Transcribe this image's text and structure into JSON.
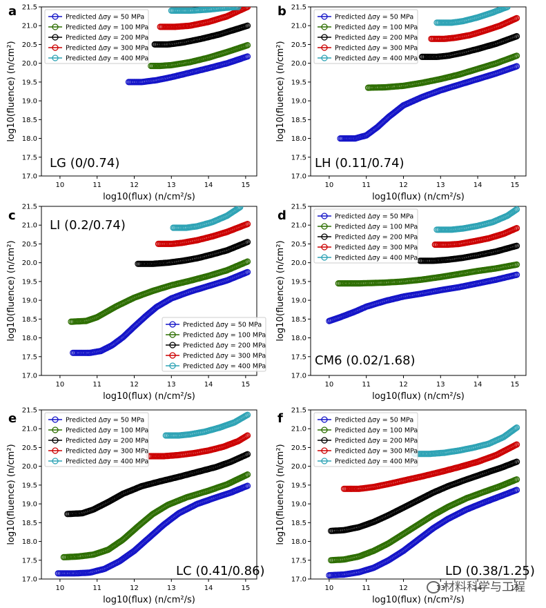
{
  "figure": {
    "x_tick_labels": [
      "10",
      "11",
      "12",
      "13",
      "14",
      "15"
    ],
    "y_tick_labels": [
      "17.0",
      "17.5",
      "18.0",
      "18.5",
      "19.0",
      "19.5",
      "20.0",
      "20.5",
      "21.0",
      "21.5"
    ],
    "xlabel": "log10(flux) (n/cm²/s)",
    "ylabel": "log10(fluence) (n/cm²)",
    "legend_labels": [
      "Predicted Δσy = 50 MPa",
      "Predicted Δσy = 100 MPa",
      "Predicted Δσy = 200 MPa",
      "Predicted Δσy = 300 MPa",
      "Predicted Δσy = 400 MPa"
    ],
    "series_colors": [
      "#1414c8",
      "#2d6e00",
      "#000000",
      "#cc0000",
      "#2ea3b5"
    ]
  },
  "watermark": "材料科学与工程",
  "chart_data": [
    {
      "type": "scatter",
      "panel_letter": "a",
      "annotation": "LG (0/0.74)",
      "xlim": [
        9.5,
        15.3
      ],
      "ylim": [
        17.0,
        21.5
      ],
      "legend_position": "upper-left",
      "series": [
        {
          "name": "Predicted Δσy = 50 MPa",
          "color": "#1414c8",
          "x": [
            11.85,
            12.2,
            12.6,
            13.0,
            13.5,
            14.0,
            14.5,
            15.05
          ],
          "y": [
            19.5,
            19.5,
            19.55,
            19.63,
            19.75,
            19.87,
            20.0,
            20.18
          ]
        },
        {
          "name": "Predicted Δσy = 100 MPa",
          "color": "#2d6e00",
          "x": [
            12.45,
            12.7,
            13.0,
            13.5,
            14.0,
            14.5,
            15.05
          ],
          "y": [
            19.93,
            19.93,
            19.95,
            20.03,
            20.15,
            20.3,
            20.48
          ]
        },
        {
          "name": "Predicted Δσy = 200 MPa",
          "color": "#000000",
          "x": [
            12.55,
            12.9,
            13.3,
            13.8,
            14.3,
            15.05
          ],
          "y": [
            20.5,
            20.5,
            20.55,
            20.65,
            20.77,
            21.0
          ]
        },
        {
          "name": "Predicted Δσy = 300 MPa",
          "color": "#cc0000",
          "x": [
            12.7,
            13.1,
            13.5,
            14.0,
            14.5,
            15.05
          ],
          "y": [
            20.97,
            20.97,
            21.0,
            21.1,
            21.25,
            21.5
          ]
        },
        {
          "name": "Predicted Δσy = 400 MPa",
          "color": "#2ea3b5",
          "x": [
            13.0,
            13.5,
            14.0,
            14.5,
            14.8
          ],
          "y": [
            21.4,
            21.4,
            21.43,
            21.48,
            21.5
          ]
        }
      ]
    },
    {
      "type": "scatter",
      "panel_letter": "b",
      "annotation": "LH (0.11/0.74)",
      "xlim": [
        9.5,
        15.3
      ],
      "ylim": [
        17.0,
        21.5
      ],
      "legend_position": "upper-left",
      "series": [
        {
          "name": "Predicted Δσy = 50 MPa",
          "color": "#1414c8",
          "x": [
            10.3,
            10.7,
            11.0,
            11.3,
            11.6,
            12.0,
            12.5,
            13.0,
            13.5,
            14.0,
            14.5,
            15.05
          ],
          "y": [
            18.0,
            18.0,
            18.08,
            18.3,
            18.57,
            18.88,
            19.1,
            19.28,
            19.43,
            19.58,
            19.73,
            19.92
          ]
        },
        {
          "name": "Predicted Δσy = 100 MPa",
          "color": "#2d6e00",
          "x": [
            11.05,
            11.5,
            12.0,
            12.5,
            13.0,
            13.5,
            14.0,
            14.5,
            15.05
          ],
          "y": [
            19.35,
            19.36,
            19.4,
            19.48,
            19.58,
            19.7,
            19.85,
            20.0,
            20.2
          ]
        },
        {
          "name": "Predicted Δσy = 200 MPa",
          "color": "#000000",
          "x": [
            12.5,
            12.9,
            13.2,
            13.6,
            14.0,
            14.5,
            15.05
          ],
          "y": [
            20.17,
            20.17,
            20.2,
            20.28,
            20.38,
            20.52,
            20.72
          ]
        },
        {
          "name": "Predicted Δσy = 300 MPa",
          "color": "#cc0000",
          "x": [
            12.75,
            13.1,
            13.4,
            13.8,
            14.2,
            14.6,
            15.05
          ],
          "y": [
            20.65,
            20.65,
            20.68,
            20.75,
            20.87,
            21.0,
            21.2
          ]
        },
        {
          "name": "Predicted Δσy = 400 MPa",
          "color": "#2ea3b5",
          "x": [
            12.9,
            13.3,
            13.6,
            14.0,
            14.4,
            14.8
          ],
          "y": [
            21.08,
            21.08,
            21.12,
            21.22,
            21.35,
            21.5
          ]
        }
      ]
    },
    {
      "type": "scatter",
      "panel_letter": "c",
      "annotation": "LI (0.2/0.74)",
      "xlim": [
        9.5,
        15.3
      ],
      "ylim": [
        17.0,
        21.5
      ],
      "legend_position": "lower-right",
      "series": [
        {
          "name": "Predicted Δσy = 50 MPa",
          "color": "#1414c8",
          "x": [
            10.35,
            10.8,
            11.1,
            11.4,
            11.7,
            12.0,
            12.3,
            12.6,
            13.0,
            13.5,
            14.0,
            14.5,
            15.05
          ],
          "y": [
            17.6,
            17.6,
            17.65,
            17.8,
            18.02,
            18.3,
            18.57,
            18.82,
            19.05,
            19.23,
            19.38,
            19.53,
            19.75
          ]
        },
        {
          "name": "Predicted Δσy = 100 MPa",
          "color": "#2d6e00",
          "x": [
            10.3,
            10.7,
            11.0,
            11.5,
            12.0,
            12.5,
            13.0,
            13.5,
            14.0,
            14.5,
            15.05
          ],
          "y": [
            18.43,
            18.45,
            18.55,
            18.83,
            19.07,
            19.25,
            19.4,
            19.52,
            19.65,
            19.8,
            20.03
          ]
        },
        {
          "name": "Predicted Δσy = 200 MPa",
          "color": "#000000",
          "x": [
            12.1,
            12.5,
            12.9,
            13.3,
            13.7,
            14.1,
            14.5,
            15.05
          ],
          "y": [
            19.97,
            19.97,
            20.0,
            20.05,
            20.12,
            20.22,
            20.33,
            20.55
          ]
        },
        {
          "name": "Predicted Δσy = 300 MPa",
          "color": "#cc0000",
          "x": [
            12.65,
            13.0,
            13.3,
            13.7,
            14.1,
            14.5,
            15.05
          ],
          "y": [
            20.5,
            20.5,
            20.53,
            20.6,
            20.7,
            20.82,
            21.03
          ]
        },
        {
          "name": "Predicted Δσy = 400 MPa",
          "color": "#2ea3b5",
          "x": [
            13.05,
            13.4,
            13.7,
            14.1,
            14.5,
            14.85
          ],
          "y": [
            20.93,
            20.93,
            20.97,
            21.08,
            21.25,
            21.48
          ]
        }
      ]
    },
    {
      "type": "scatter",
      "panel_letter": "d",
      "annotation": "CM6 (0.02/1.68)",
      "xlim": [
        9.5,
        15.3
      ],
      "ylim": [
        17.0,
        21.5
      ],
      "legend_position": "upper-left",
      "series": [
        {
          "name": "Predicted Δσy = 50 MPa",
          "color": "#1414c8",
          "x": [
            10.0,
            10.3,
            10.7,
            11.0,
            11.5,
            12.0,
            12.5,
            13.0,
            13.5,
            14.0,
            14.5,
            15.05
          ],
          "y": [
            18.45,
            18.55,
            18.7,
            18.83,
            18.98,
            19.1,
            19.18,
            19.27,
            19.35,
            19.45,
            19.55,
            19.68
          ]
        },
        {
          "name": "Predicted Δσy = 100 MPa",
          "color": "#2d6e00",
          "x": [
            10.25,
            10.8,
            11.5,
            12.0,
            12.5,
            13.0,
            13.5,
            14.0,
            14.5,
            15.05
          ],
          "y": [
            19.45,
            19.45,
            19.47,
            19.5,
            19.55,
            19.62,
            19.7,
            19.78,
            19.85,
            19.95
          ]
        },
        {
          "name": "Predicted Δσy = 200 MPa",
          "color": "#000000",
          "x": [
            12.45,
            12.8,
            13.2,
            13.6,
            14.0,
            14.5,
            15.05
          ],
          "y": [
            20.05,
            20.05,
            20.08,
            20.13,
            20.2,
            20.3,
            20.45
          ]
        },
        {
          "name": "Predicted Δσy = 300 MPa",
          "color": "#cc0000",
          "x": [
            12.85,
            13.2,
            13.5,
            13.9,
            14.3,
            14.7,
            15.05
          ],
          "y": [
            20.48,
            20.48,
            20.5,
            20.57,
            20.65,
            20.77,
            20.92
          ]
        },
        {
          "name": "Predicted Δσy = 400 MPa",
          "color": "#2ea3b5",
          "x": [
            12.9,
            13.3,
            13.6,
            14.0,
            14.4,
            14.8,
            15.05
          ],
          "y": [
            20.88,
            20.88,
            20.91,
            20.98,
            21.08,
            21.25,
            21.42
          ]
        }
      ]
    },
    {
      "type": "scatter",
      "panel_letter": "e",
      "annotation": "LC (0.41/0.86)",
      "xlim": [
        9.5,
        15.3
      ],
      "ylim": [
        17.0,
        21.5
      ],
      "legend_position": "upper-left",
      "series": [
        {
          "name": "Predicted Δσy = 50 MPa",
          "color": "#1414c8",
          "x": [
            9.95,
            10.4,
            10.8,
            11.2,
            11.6,
            12.0,
            12.4,
            12.8,
            13.2,
            13.7,
            14.2,
            14.6,
            15.05
          ],
          "y": [
            17.15,
            17.15,
            17.17,
            17.27,
            17.47,
            17.75,
            18.1,
            18.45,
            18.75,
            19.0,
            19.17,
            19.3,
            19.48
          ]
        },
        {
          "name": "Predicted Δσy = 100 MPa",
          "color": "#2d6e00",
          "x": [
            10.1,
            10.5,
            10.9,
            11.3,
            11.7,
            12.1,
            12.5,
            12.9,
            13.4,
            14.0,
            14.5,
            15.05
          ],
          "y": [
            17.58,
            17.6,
            17.65,
            17.78,
            18.05,
            18.4,
            18.73,
            18.97,
            19.17,
            19.35,
            19.52,
            19.78
          ]
        },
        {
          "name": "Predicted Δσy = 200 MPa",
          "color": "#000000",
          "x": [
            10.2,
            10.6,
            10.9,
            11.3,
            11.7,
            12.2,
            12.7,
            13.2,
            13.7,
            14.2,
            14.6,
            15.05
          ],
          "y": [
            18.73,
            18.75,
            18.85,
            19.05,
            19.27,
            19.47,
            19.6,
            19.72,
            19.85,
            19.98,
            20.12,
            20.32
          ]
        },
        {
          "name": "Predicted Δσy = 300 MPa",
          "color": "#cc0000",
          "x": [
            12.4,
            12.8,
            13.2,
            13.6,
            14.0,
            14.4,
            14.8,
            15.05
          ],
          "y": [
            20.27,
            20.27,
            20.3,
            20.35,
            20.42,
            20.52,
            20.67,
            20.82
          ]
        },
        {
          "name": "Predicted Δσy = 400 MPa",
          "color": "#2ea3b5",
          "x": [
            12.85,
            13.2,
            13.5,
            13.9,
            14.3,
            14.7,
            15.05
          ],
          "y": [
            20.82,
            20.82,
            20.85,
            20.92,
            21.03,
            21.17,
            21.37
          ]
        }
      ]
    },
    {
      "type": "scatter",
      "panel_letter": "f",
      "annotation": "LD (0.38/1.25)",
      "xlim": [
        9.5,
        15.3
      ],
      "ylim": [
        17.0,
        21.5
      ],
      "legend_position": "upper-left",
      "series": [
        {
          "name": "Predicted Δσy = 50 MPa",
          "color": "#1414c8",
          "x": [
            10.0,
            10.4,
            10.8,
            11.2,
            11.6,
            12.0,
            12.4,
            12.8,
            13.2,
            13.7,
            14.2,
            14.6,
            15.05
          ],
          "y": [
            17.1,
            17.12,
            17.18,
            17.3,
            17.5,
            17.75,
            18.05,
            18.35,
            18.6,
            18.85,
            19.05,
            19.2,
            19.37
          ]
        },
        {
          "name": "Predicted Δσy = 100 MPa",
          "color": "#2d6e00",
          "x": [
            10.05,
            10.4,
            10.8,
            11.2,
            11.6,
            12.0,
            12.4,
            12.8,
            13.2,
            13.7,
            14.2,
            14.6,
            15.05
          ],
          "y": [
            17.5,
            17.52,
            17.6,
            17.75,
            17.95,
            18.2,
            18.45,
            18.7,
            18.92,
            19.15,
            19.33,
            19.47,
            19.65
          ]
        },
        {
          "name": "Predicted Δσy = 200 MPa",
          "color": "#000000",
          "x": [
            10.05,
            10.4,
            10.8,
            11.2,
            11.6,
            12.0,
            12.4,
            12.8,
            13.2,
            13.7,
            14.2,
            14.6,
            15.05
          ],
          "y": [
            18.28,
            18.3,
            18.38,
            18.52,
            18.7,
            18.9,
            19.1,
            19.3,
            19.47,
            19.65,
            19.82,
            19.95,
            20.12
          ]
        },
        {
          "name": "Predicted Δσy = 300 MPa",
          "color": "#cc0000",
          "x": [
            10.4,
            10.8,
            11.2,
            11.6,
            12.0,
            12.5,
            13.0,
            13.5,
            14.0,
            14.5,
            15.05
          ],
          "y": [
            19.4,
            19.4,
            19.45,
            19.53,
            19.62,
            19.73,
            19.85,
            19.98,
            20.12,
            20.3,
            20.58
          ]
        },
        {
          "name": "Predicted Δσy = 400 MPa",
          "color": "#2ea3b5",
          "x": [
            12.3,
            12.7,
            13.1,
            13.5,
            13.9,
            14.3,
            14.7,
            15.05
          ],
          "y": [
            20.33,
            20.33,
            20.36,
            20.42,
            20.5,
            20.6,
            20.78,
            21.03
          ]
        }
      ]
    }
  ]
}
